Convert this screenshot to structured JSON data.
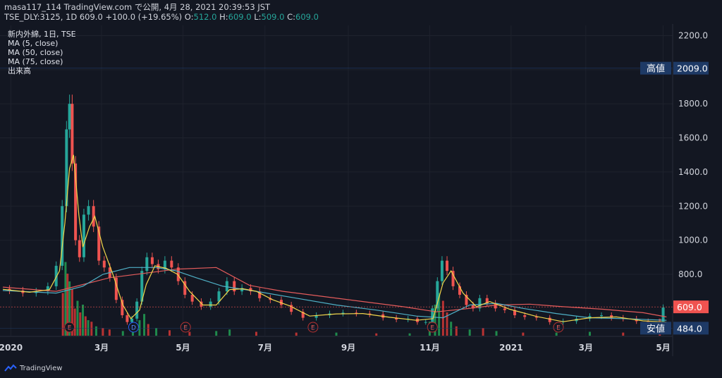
{
  "header": {
    "publish_line": "masa117_114 TradingView.com で公開, 4月 28, 2021 20:39:53 JST",
    "ticker": "TSE_DLY:3125, 1D",
    "last": "609.0",
    "change": "+100.0 (+19.65%)",
    "o_label": "O:",
    "o_value": "512.0",
    "h_label": "H:",
    "h_value": "609.0",
    "l_label": "L:",
    "l_value": "509.0",
    "c_label": "C:",
    "c_value": "609.0"
  },
  "legend": {
    "symbol": "新内外綿, 1日, TSE",
    "ma5": "MA (5, close)",
    "ma50": "MA (50, close)",
    "ma75": "MA (75, close)",
    "volume": "出来高"
  },
  "colors": {
    "background": "#131722",
    "up": "#26a69a",
    "down": "#ef5350",
    "ma5": "#f2d64b",
    "ma50": "#4fb0c6",
    "ma75": "#e35b5b",
    "vol_up": "#1f8a4c",
    "vol_down": "#b83232",
    "high_label_bg": "#1e3a66",
    "price_label_bg": "#ef5350"
  },
  "footer": {
    "brand": "TradingView",
    "icon": "tradingview-logo-icon"
  },
  "chart_data": {
    "type": "candlestick",
    "ylim": [
      440,
      2260
    ],
    "yticks": [
      800,
      1000,
      1200,
      1400,
      1600,
      1800,
      2000,
      2200
    ],
    "ytick_labels": [
      "800.0",
      "1000.0",
      "1200.0",
      "1400.0",
      "1600.0",
      "1800.0",
      "2000.0",
      "2200.0"
    ],
    "x_labels": [
      {
        "label": "2020",
        "t": 0.012
      },
      {
        "label": "3月",
        "t": 0.148
      },
      {
        "label": "5月",
        "t": 0.27
      },
      {
        "label": "7月",
        "t": 0.393
      },
      {
        "label": "9月",
        "t": 0.518
      },
      {
        "label": "11月",
        "t": 0.64
      },
      {
        "label": "2021",
        "t": 0.762
      },
      {
        "label": "3月",
        "t": 0.874
      },
      {
        "label": "5月",
        "t": 0.99
      }
    ],
    "price_markers": [
      {
        "label": "高値",
        "value": 2009.0,
        "value_label": "2009.0",
        "kind": "high"
      },
      {
        "label": "",
        "value": 609.0,
        "value_label": "609.0",
        "kind": "last"
      },
      {
        "label": "安値",
        "value": 484.0,
        "value_label": "484.0",
        "kind": "low"
      }
    ],
    "events": [
      {
        "label": "E",
        "t": 0.1
      },
      {
        "label": "D",
        "t": 0.196
      },
      {
        "label": "E",
        "t": 0.274
      },
      {
        "label": "E",
        "t": 0.465
      },
      {
        "label": "E",
        "t": 0.644
      },
      {
        "label": "E",
        "t": 0.833
      }
    ],
    "price_series": [
      [
        0.0,
        715
      ],
      [
        0.02,
        705
      ],
      [
        0.04,
        690
      ],
      [
        0.06,
        700
      ],
      [
        0.075,
        730
      ],
      [
        0.085,
        850
      ],
      [
        0.093,
        1200
      ],
      [
        0.098,
        1650
      ],
      [
        0.102,
        1800
      ],
      [
        0.106,
        1450
      ],
      [
        0.112,
        1000
      ],
      [
        0.118,
        900
      ],
      [
        0.125,
        1150
      ],
      [
        0.132,
        1200
      ],
      [
        0.14,
        1080
      ],
      [
        0.148,
        880
      ],
      [
        0.156,
        840
      ],
      [
        0.165,
        780
      ],
      [
        0.175,
        650
      ],
      [
        0.183,
        560
      ],
      [
        0.19,
        520
      ],
      [
        0.197,
        540
      ],
      [
        0.205,
        640
      ],
      [
        0.212,
        820
      ],
      [
        0.22,
        900
      ],
      [
        0.228,
        860
      ],
      [
        0.238,
        830
      ],
      [
        0.248,
        880
      ],
      [
        0.258,
        840
      ],
      [
        0.268,
        760
      ],
      [
        0.278,
        680
      ],
      [
        0.29,
        640
      ],
      [
        0.305,
        610
      ],
      [
        0.318,
        640
      ],
      [
        0.33,
        700
      ],
      [
        0.342,
        760
      ],
      [
        0.352,
        700
      ],
      [
        0.365,
        720
      ],
      [
        0.378,
        700
      ],
      [
        0.392,
        660
      ],
      [
        0.41,
        650
      ],
      [
        0.425,
        620
      ],
      [
        0.44,
        580
      ],
      [
        0.46,
        545
      ],
      [
        0.48,
        560
      ],
      [
        0.5,
        570
      ],
      [
        0.52,
        575
      ],
      [
        0.54,
        570
      ],
      [
        0.56,
        565
      ],
      [
        0.58,
        545
      ],
      [
        0.6,
        535
      ],
      [
        0.615,
        540
      ],
      [
        0.628,
        520
      ],
      [
        0.64,
        520
      ],
      [
        0.648,
        600
      ],
      [
        0.655,
        760
      ],
      [
        0.662,
        880
      ],
      [
        0.67,
        820
      ],
      [
        0.68,
        730
      ],
      [
        0.69,
        680
      ],
      [
        0.7,
        620
      ],
      [
        0.71,
        600
      ],
      [
        0.72,
        660
      ],
      [
        0.732,
        630
      ],
      [
        0.745,
        600
      ],
      [
        0.76,
        590
      ],
      [
        0.775,
        560
      ],
      [
        0.79,
        550
      ],
      [
        0.81,
        545
      ],
      [
        0.83,
        520
      ],
      [
        0.85,
        525
      ],
      [
        0.87,
        540
      ],
      [
        0.89,
        555
      ],
      [
        0.905,
        560
      ],
      [
        0.92,
        545
      ],
      [
        0.94,
        540
      ],
      [
        0.96,
        525
      ],
      [
        0.975,
        510
      ],
      [
        0.985,
        505
      ],
      [
        0.995,
        605
      ]
    ],
    "ma5": [
      [
        0.0,
        712
      ],
      [
        0.04,
        695
      ],
      [
        0.07,
        710
      ],
      [
        0.085,
        820
      ],
      [
        0.093,
        1100
      ],
      [
        0.1,
        1420
      ],
      [
        0.106,
        1500
      ],
      [
        0.114,
        1150
      ],
      [
        0.12,
        960
      ],
      [
        0.13,
        1080
      ],
      [
        0.138,
        1140
      ],
      [
        0.15,
        960
      ],
      [
        0.165,
        800
      ],
      [
        0.18,
        620
      ],
      [
        0.192,
        540
      ],
      [
        0.205,
        590
      ],
      [
        0.215,
        740
      ],
      [
        0.228,
        850
      ],
      [
        0.245,
        835
      ],
      [
        0.262,
        800
      ],
      [
        0.28,
        700
      ],
      [
        0.3,
        620
      ],
      [
        0.32,
        620
      ],
      [
        0.34,
        710
      ],
      [
        0.36,
        715
      ],
      [
        0.38,
        700
      ],
      [
        0.405,
        650
      ],
      [
        0.43,
        615
      ],
      [
        0.46,
        555
      ],
      [
        0.5,
        568
      ],
      [
        0.54,
        570
      ],
      [
        0.58,
        548
      ],
      [
        0.62,
        530
      ],
      [
        0.645,
        540
      ],
      [
        0.66,
        750
      ],
      [
        0.672,
        820
      ],
      [
        0.69,
        690
      ],
      [
        0.71,
        610
      ],
      [
        0.73,
        640
      ],
      [
        0.76,
        595
      ],
      [
        0.8,
        553
      ],
      [
        0.84,
        522
      ],
      [
        0.88,
        545
      ],
      [
        0.92,
        550
      ],
      [
        0.96,
        527
      ],
      [
        0.995,
        520
      ]
    ],
    "ma50": [
      [
        0.0,
        705
      ],
      [
        0.08,
        690
      ],
      [
        0.12,
        730
      ],
      [
        0.15,
        800
      ],
      [
        0.19,
        840
      ],
      [
        0.23,
        840
      ],
      [
        0.26,
        820
      ],
      [
        0.29,
        780
      ],
      [
        0.33,
        730
      ],
      [
        0.38,
        700
      ],
      [
        0.44,
        660
      ],
      [
        0.5,
        620
      ],
      [
        0.56,
        590
      ],
      [
        0.62,
        555
      ],
      [
        0.66,
        545
      ],
      [
        0.7,
        620
      ],
      [
        0.74,
        630
      ],
      [
        0.78,
        600
      ],
      [
        0.83,
        570
      ],
      [
        0.88,
        545
      ],
      [
        0.93,
        540
      ],
      [
        0.995,
        530
      ]
    ],
    "ma75": [
      [
        0.0,
        725
      ],
      [
        0.08,
        700
      ],
      [
        0.12,
        740
      ],
      [
        0.16,
        780
      ],
      [
        0.21,
        805
      ],
      [
        0.26,
        830
      ],
      [
        0.32,
        840
      ],
      [
        0.37,
        735
      ],
      [
        0.42,
        700
      ],
      [
        0.48,
        670
      ],
      [
        0.54,
        640
      ],
      [
        0.6,
        610
      ],
      [
        0.65,
        580
      ],
      [
        0.7,
        600
      ],
      [
        0.74,
        620
      ],
      [
        0.79,
        625
      ],
      [
        0.84,
        610
      ],
      [
        0.9,
        595
      ],
      [
        0.96,
        575
      ],
      [
        0.995,
        550
      ]
    ],
    "volume": [
      [
        0.09,
        0.55,
        "d"
      ],
      [
        0.094,
        0.95,
        "u"
      ],
      [
        0.097,
        0.8,
        "d"
      ],
      [
        0.1,
        0.7,
        "u"
      ],
      [
        0.104,
        0.6,
        "d"
      ],
      [
        0.108,
        0.35,
        "d"
      ],
      [
        0.112,
        0.45,
        "u"
      ],
      [
        0.116,
        0.3,
        "d"
      ],
      [
        0.12,
        0.4,
        "u"
      ],
      [
        0.124,
        0.25,
        "d"
      ],
      [
        0.128,
        0.2,
        "u"
      ],
      [
        0.133,
        0.18,
        "d"
      ],
      [
        0.14,
        0.12,
        "u"
      ],
      [
        0.15,
        0.1,
        "d"
      ],
      [
        0.16,
        0.08,
        "d"
      ],
      [
        0.18,
        0.06,
        "u"
      ],
      [
        0.195,
        0.08,
        "u"
      ],
      [
        0.205,
        0.2,
        "u"
      ],
      [
        0.212,
        0.28,
        "u"
      ],
      [
        0.218,
        0.15,
        "d"
      ],
      [
        0.23,
        0.1,
        "u"
      ],
      [
        0.25,
        0.07,
        "d"
      ],
      [
        0.28,
        0.05,
        "d"
      ],
      [
        0.32,
        0.06,
        "u"
      ],
      [
        0.34,
        0.08,
        "u"
      ],
      [
        0.38,
        0.05,
        "d"
      ],
      [
        0.44,
        0.04,
        "d"
      ],
      [
        0.5,
        0.04,
        "u"
      ],
      [
        0.56,
        0.03,
        "d"
      ],
      [
        0.61,
        0.03,
        "u"
      ],
      [
        0.64,
        0.18,
        "u"
      ],
      [
        0.648,
        0.4,
        "u"
      ],
      [
        0.654,
        0.55,
        "u"
      ],
      [
        0.66,
        0.45,
        "d"
      ],
      [
        0.666,
        0.3,
        "d"
      ],
      [
        0.672,
        0.18,
        "u"
      ],
      [
        0.68,
        0.12,
        "d"
      ],
      [
        0.7,
        0.08,
        "u"
      ],
      [
        0.72,
        0.1,
        "d"
      ],
      [
        0.74,
        0.06,
        "u"
      ],
      [
        0.78,
        0.04,
        "d"
      ],
      [
        0.83,
        0.04,
        "u"
      ],
      [
        0.88,
        0.05,
        "u"
      ],
      [
        0.93,
        0.04,
        "d"
      ],
      [
        0.985,
        0.22,
        "d"
      ]
    ]
  }
}
